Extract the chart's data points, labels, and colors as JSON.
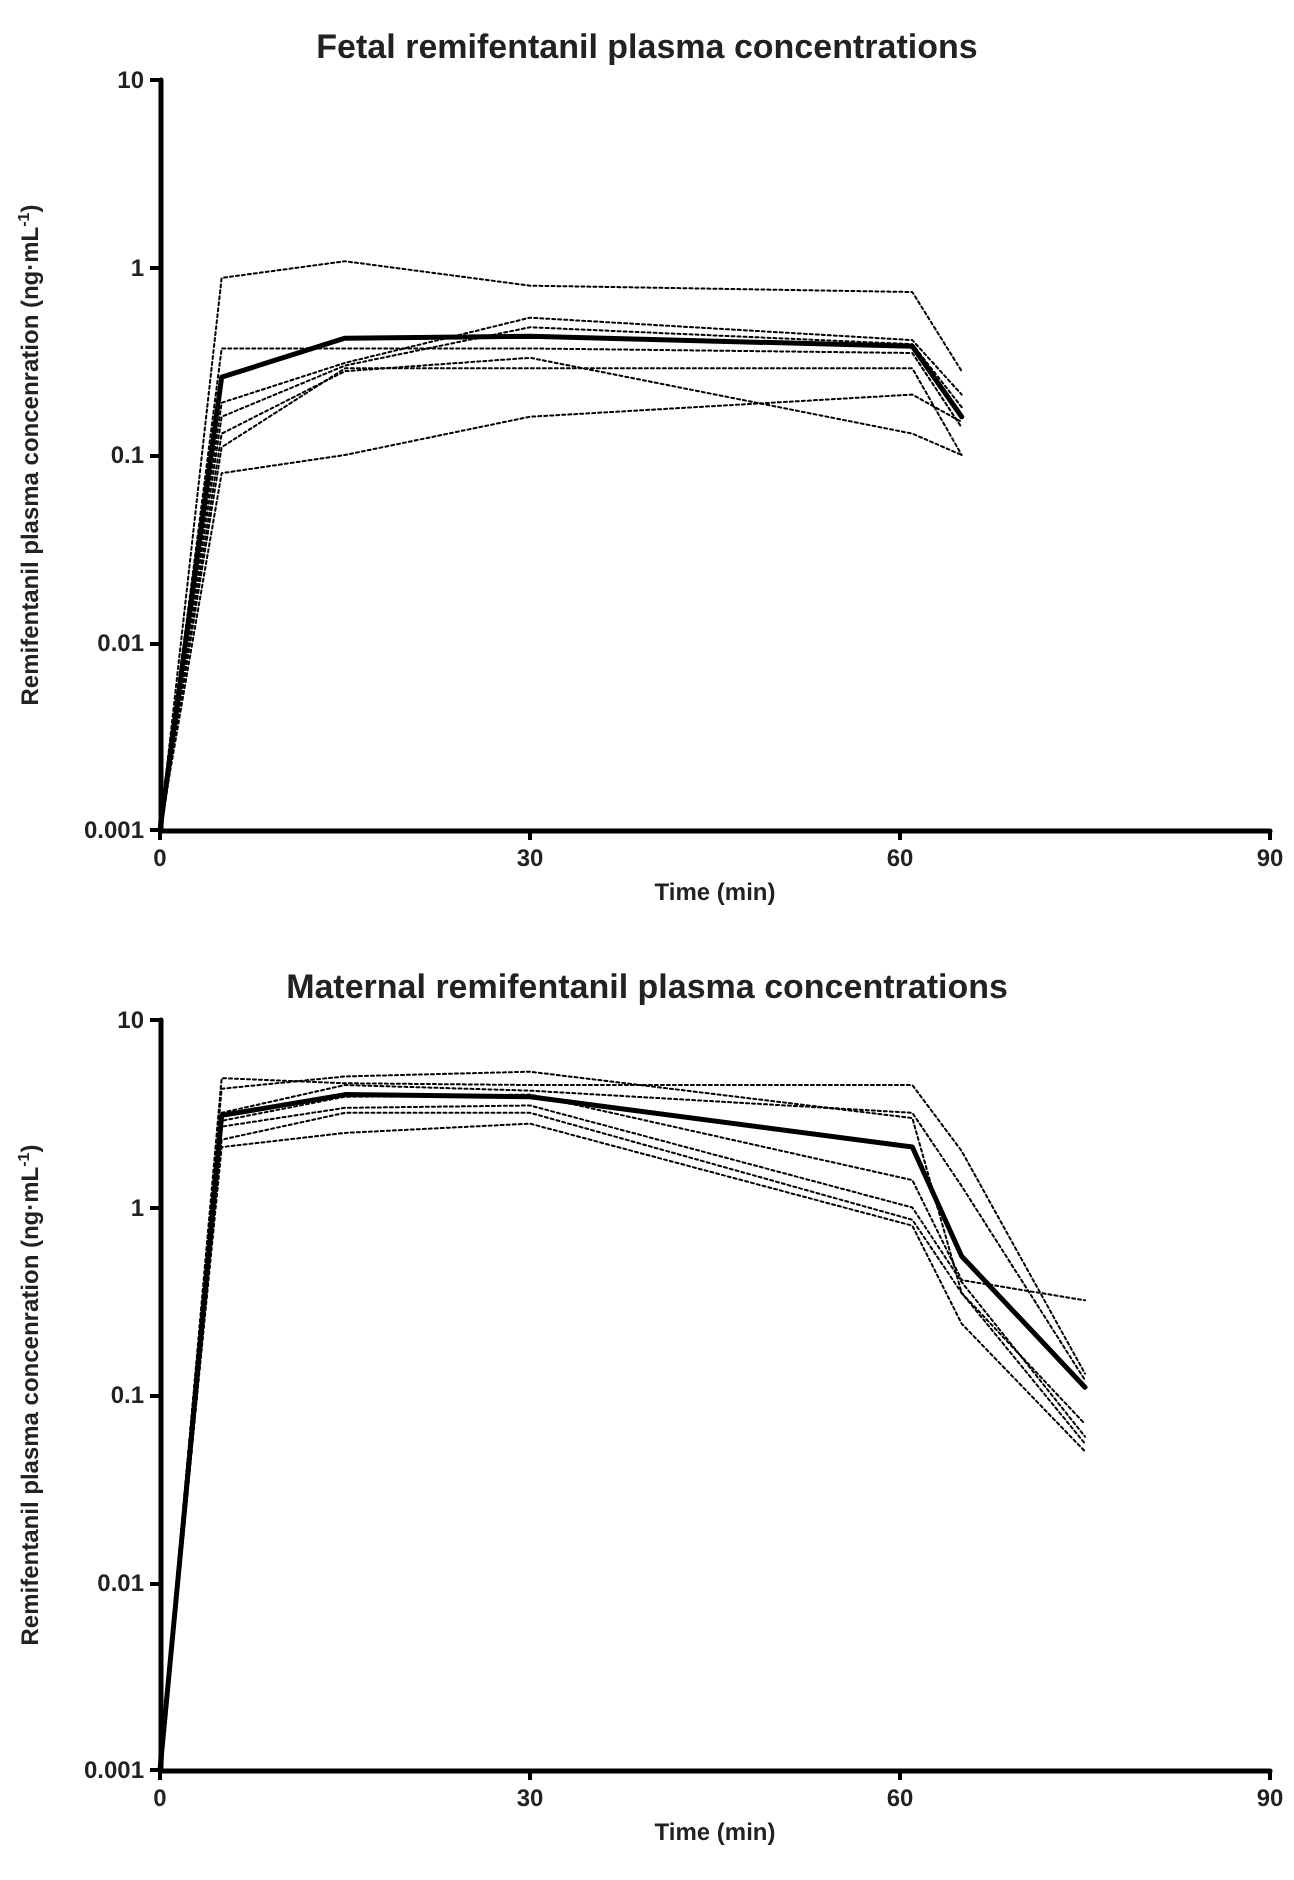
{
  "chart_data": [
    {
      "type": "line",
      "title": "Fetal remifentanil plasma concentrations",
      "xlabel": "Time (min)",
      "ylabel": "Remifentanil plasma concenration (ng·mL$^{-1}$)",
      "x": [
        0,
        5,
        15,
        30,
        61,
        65
      ],
      "xlim": [
        0,
        90
      ],
      "xticks": [
        0,
        30,
        60,
        90
      ],
      "ylim": [
        0.001,
        10
      ],
      "yticks": [
        0.001,
        0.01,
        0.1,
        1,
        10
      ],
      "log": "y",
      "marker": "none",
      "series": [
        {
          "color": "#000000",
          "line_style": "dotted",
          "values": [
            0.001,
            0.88,
            1.08,
            0.8,
            0.74,
            0.28
          ]
        },
        {
          "color": "#000000",
          "line_style": "dotted",
          "values": [
            0.001,
            0.37,
            0.37,
            0.37,
            0.35,
            0.14
          ]
        },
        {
          "color": "#000000",
          "line_style": "dotted",
          "values": [
            0.001,
            0.19,
            0.31,
            0.54,
            0.41,
            0.21
          ]
        },
        {
          "color": "#000000",
          "line_style": "dotted",
          "values": [
            0.001,
            0.16,
            0.3,
            0.48,
            0.39,
            0.18
          ]
        },
        {
          "color": "#000000",
          "line_style": "dotted",
          "values": [
            0.001,
            0.13,
            0.28,
            0.33,
            0.13,
            0.1
          ]
        },
        {
          "color": "#000000",
          "line_style": "dotted",
          "values": [
            0.001,
            0.11,
            0.29,
            0.29,
            0.29,
            0.1
          ]
        },
        {
          "color": "#000000",
          "line_style": "dotted",
          "values": [
            0.001,
            0.08,
            0.1,
            0.16,
            0.21,
            0.15
          ]
        },
        {
          "color": "#000000",
          "line_style": "solid",
          "values": [
            0.001,
            0.26,
            0.42,
            0.43,
            0.38,
            0.16
          ]
        }
      ]
    },
    {
      "type": "line",
      "title": "Maternal remifentanil plasma concentrations",
      "xlabel": "Time (min)",
      "ylabel": "Remifentanil plasma concenration (ng·mL$^{-1}$)",
      "x": [
        0,
        5,
        15,
        30,
        61,
        65,
        75
      ],
      "xlim": [
        0,
        90
      ],
      "xticks": [
        0,
        30,
        60,
        90
      ],
      "ylim": [
        0.001,
        10
      ],
      "yticks": [
        0.001,
        0.01,
        0.1,
        1,
        10
      ],
      "log": "y",
      "marker": "none",
      "series": [
        {
          "color": "#000000",
          "line_style": "dotted",
          "values": [
            0.001,
            4.9,
            4.6,
            4.5,
            4.5,
            2.0,
            0.13
          ]
        },
        {
          "color": "#000000",
          "line_style": "dotted",
          "values": [
            0.001,
            4.3,
            5.0,
            5.3,
            3.0,
            0.35,
            0.07
          ]
        },
        {
          "color": "#000000",
          "line_style": "dotted",
          "values": [
            0.001,
            3.2,
            4.5,
            4.2,
            3.2,
            1.3,
            0.12
          ]
        },
        {
          "color": "#000000",
          "line_style": "dotted",
          "values": [
            0.001,
            2.9,
            3.9,
            4.0,
            1.4,
            0.41,
            0.32
          ]
        },
        {
          "color": "#000000",
          "line_style": "dotted",
          "values": [
            0.001,
            2.7,
            3.4,
            3.5,
            1.0,
            0.4,
            0.06
          ]
        },
        {
          "color": "#000000",
          "line_style": "dotted",
          "values": [
            0.001,
            2.3,
            3.2,
            3.2,
            0.86,
            0.35,
            0.055
          ]
        },
        {
          "color": "#000000",
          "line_style": "dotted",
          "values": [
            0.001,
            2.1,
            2.5,
            2.8,
            0.8,
            0.24,
            0.05
          ]
        },
        {
          "color": "#000000",
          "line_style": "solid",
          "values": [
            0.001,
            3.1,
            4.0,
            3.9,
            2.1,
            0.55,
            0.11
          ]
        }
      ]
    }
  ]
}
